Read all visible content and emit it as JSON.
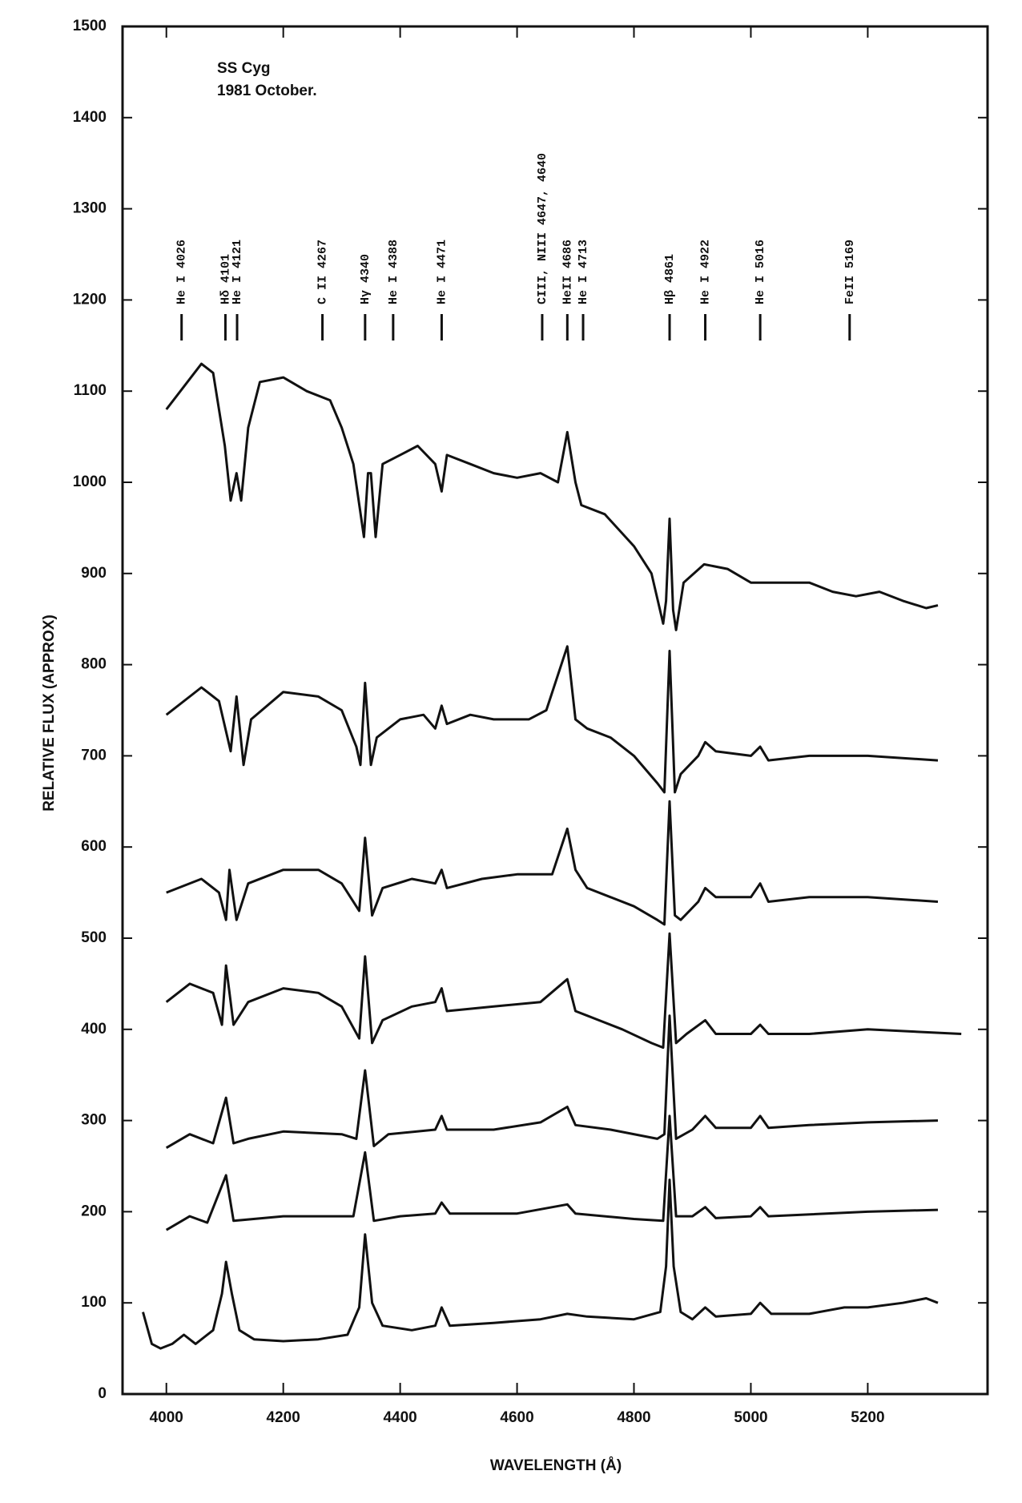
{
  "chart_data": {
    "type": "line",
    "title": "SS Cyg",
    "subtitle": "1981 October.",
    "x_label": "WAVELENGTH (Å)",
    "y_label": "RELATIVE FLUX (APPROX)",
    "xlim": [
      3925,
      5405
    ],
    "ylim": [
      0,
      1500
    ],
    "xticks": [
      4000,
      4200,
      4400,
      4600,
      4800,
      5000,
      5200
    ],
    "yticks": [
      0,
      100,
      200,
      300,
      400,
      500,
      600,
      700,
      800,
      900,
      1000,
      1100,
      1200,
      1300,
      1400,
      1500
    ],
    "grid": false,
    "annotations": [
      {
        "label": "He I 4026",
        "x": 4026
      },
      {
        "label": "Hδ 4101",
        "x": 4101
      },
      {
        "label": "He I 4121",
        "x": 4121
      },
      {
        "label": "C II 4267",
        "x": 4267
      },
      {
        "label": "Hγ 4340",
        "x": 4340
      },
      {
        "label": "He I 4388",
        "x": 4388
      },
      {
        "label": "He I 4471",
        "x": 4471
      },
      {
        "label": "CIII, NIII 4647, 4640",
        "x": 4643
      },
      {
        "label": "HeII 4686",
        "x": 4686
      },
      {
        "label": "He I 4713",
        "x": 4713
      },
      {
        "label": "Hβ 4861",
        "x": 4861
      },
      {
        "label": "He I 4922",
        "x": 4922
      },
      {
        "label": "He I 5016",
        "x": 5016
      },
      {
        "label": "FeII 5169",
        "x": 5169
      }
    ],
    "series": [
      {
        "color": "#111",
        "x": [
          4000,
          4060,
          4080,
          4100,
          4110,
          4120,
          4128,
          4140,
          4160,
          4200,
          4240,
          4280,
          4300,
          4320,
          4338,
          4345,
          4350,
          4358,
          4370,
          4400,
          4430,
          4460,
          4471,
          4480,
          4520,
          4560,
          4600,
          4640,
          4670,
          4686,
          4700,
          4710,
          4750,
          4800,
          4830,
          4850,
          4855,
          4861,
          4867,
          4872,
          4885,
          4920,
          4960,
          5000,
          5040,
          5100,
          5140,
          5180,
          5220,
          5260,
          5300,
          5320
        ],
        "values": [
          1080,
          1130,
          1120,
          1040,
          980,
          1010,
          980,
          1060,
          1110,
          1115,
          1100,
          1090,
          1060,
          1020,
          940,
          1010,
          1010,
          940,
          1020,
          1030,
          1040,
          1020,
          990,
          1030,
          1020,
          1010,
          1005,
          1010,
          1000,
          1055,
          1000,
          975,
          965,
          930,
          900,
          845,
          870,
          960,
          860,
          838,
          890,
          910,
          905,
          890,
          890,
          890,
          880,
          875,
          880,
          870,
          862,
          865
        ]
      },
      {
        "color": "#111",
        "x": [
          4000,
          4060,
          4090,
          4110,
          4120,
          4132,
          4145,
          4200,
          4260,
          4300,
          4325,
          4332,
          4340,
          4350,
          4360,
          4400,
          4440,
          4460,
          4471,
          4480,
          4520,
          4560,
          4620,
          4650,
          4686,
          4700,
          4720,
          4760,
          4800,
          4840,
          4852,
          4861,
          4870,
          4880,
          4910,
          4922,
          4940,
          5000,
          5016,
          5030,
          5100,
          5200,
          5320
        ],
        "values": [
          745,
          775,
          760,
          705,
          765,
          690,
          740,
          770,
          765,
          750,
          710,
          690,
          780,
          690,
          720,
          740,
          745,
          730,
          755,
          735,
          745,
          740,
          740,
          750,
          820,
          740,
          730,
          720,
          700,
          670,
          660,
          815,
          660,
          680,
          700,
          715,
          705,
          700,
          710,
          695,
          700,
          700,
          695
        ]
      },
      {
        "color": "#111",
        "x": [
          4000,
          4060,
          4090,
          4102,
          4108,
          4120,
          4140,
          4200,
          4260,
          4300,
          4330,
          4340,
          4352,
          4370,
          4420,
          4460,
          4471,
          4480,
          4540,
          4600,
          4660,
          4686,
          4700,
          4720,
          4760,
          4800,
          4840,
          4852,
          4861,
          4870,
          4880,
          4910,
          4922,
          4940,
          5000,
          5016,
          5030,
          5100,
          5200,
          5320
        ],
        "values": [
          550,
          565,
          550,
          520,
          575,
          520,
          560,
          575,
          575,
          560,
          530,
          610,
          525,
          555,
          565,
          560,
          575,
          555,
          565,
          570,
          570,
          620,
          575,
          555,
          545,
          535,
          520,
          515,
          650,
          525,
          520,
          540,
          555,
          545,
          545,
          560,
          540,
          545,
          545,
          540
        ]
      },
      {
        "color": "#111",
        "x": [
          4000,
          4040,
          4080,
          4095,
          4102,
          4115,
          4140,
          4200,
          4260,
          4300,
          4330,
          4340,
          4352,
          4370,
          4420,
          4460,
          4471,
          4480,
          4560,
          4640,
          4686,
          4700,
          4720,
          4780,
          4830,
          4850,
          4861,
          4872,
          4890,
          4922,
          4940,
          5000,
          5016,
          5030,
          5100,
          5200,
          5360
        ],
        "values": [
          430,
          450,
          440,
          405,
          470,
          405,
          430,
          445,
          440,
          425,
          390,
          480,
          385,
          410,
          425,
          430,
          445,
          420,
          425,
          430,
          455,
          420,
          415,
          400,
          385,
          380,
          505,
          385,
          395,
          410,
          395,
          395,
          405,
          395,
          395,
          400,
          395
        ]
      },
      {
        "color": "#111",
        "x": [
          4000,
          4040,
          4080,
          4102,
          4115,
          4140,
          4200,
          4300,
          4325,
          4340,
          4355,
          4380,
          4460,
          4471,
          4480,
          4560,
          4640,
          4686,
          4700,
          4760,
          4840,
          4852,
          4861,
          4872,
          4900,
          4922,
          4940,
          5000,
          5016,
          5030,
          5100,
          5200,
          5320
        ],
        "values": [
          270,
          285,
          275,
          325,
          275,
          280,
          288,
          285,
          280,
          355,
          272,
          285,
          290,
          305,
          290,
          290,
          298,
          315,
          295,
          290,
          280,
          285,
          415,
          280,
          290,
          305,
          292,
          292,
          305,
          292,
          295,
          298,
          300
        ]
      },
      {
        "color": "#111",
        "x": [
          4000,
          4040,
          4070,
          4102,
          4115,
          4200,
          4320,
          4340,
          4355,
          4400,
          4460,
          4471,
          4485,
          4600,
          4686,
          4700,
          4800,
          4850,
          4861,
          4872,
          4900,
          4922,
          4940,
          5000,
          5016,
          5030,
          5200,
          5320
        ],
        "values": [
          180,
          195,
          188,
          240,
          190,
          195,
          195,
          265,
          190,
          195,
          198,
          210,
          198,
          198,
          208,
          198,
          192,
          190,
          305,
          195,
          195,
          205,
          193,
          195,
          205,
          195,
          200,
          202
        ]
      },
      {
        "color": "#111",
        "x": [
          3960,
          3975,
          3990,
          4010,
          4030,
          4050,
          4080,
          4095,
          4102,
          4112,
          4125,
          4150,
          4200,
          4260,
          4310,
          4330,
          4340,
          4352,
          4370,
          4420,
          4460,
          4471,
          4485,
          4560,
          4640,
          4686,
          4720,
          4800,
          4845,
          4855,
          4861,
          4868,
          4880,
          4900,
          4922,
          4940,
          5000,
          5016,
          5035,
          5100,
          5160,
          5200,
          5260,
          5300,
          5320
        ],
        "values": [
          90,
          55,
          50,
          55,
          65,
          55,
          70,
          110,
          145,
          110,
          70,
          60,
          58,
          60,
          65,
          95,
          175,
          100,
          75,
          70,
          75,
          95,
          75,
          78,
          82,
          88,
          85,
          82,
          90,
          140,
          235,
          140,
          90,
          82,
          95,
          85,
          88,
          100,
          88,
          88,
          95,
          95,
          100,
          105,
          100
        ]
      }
    ]
  }
}
